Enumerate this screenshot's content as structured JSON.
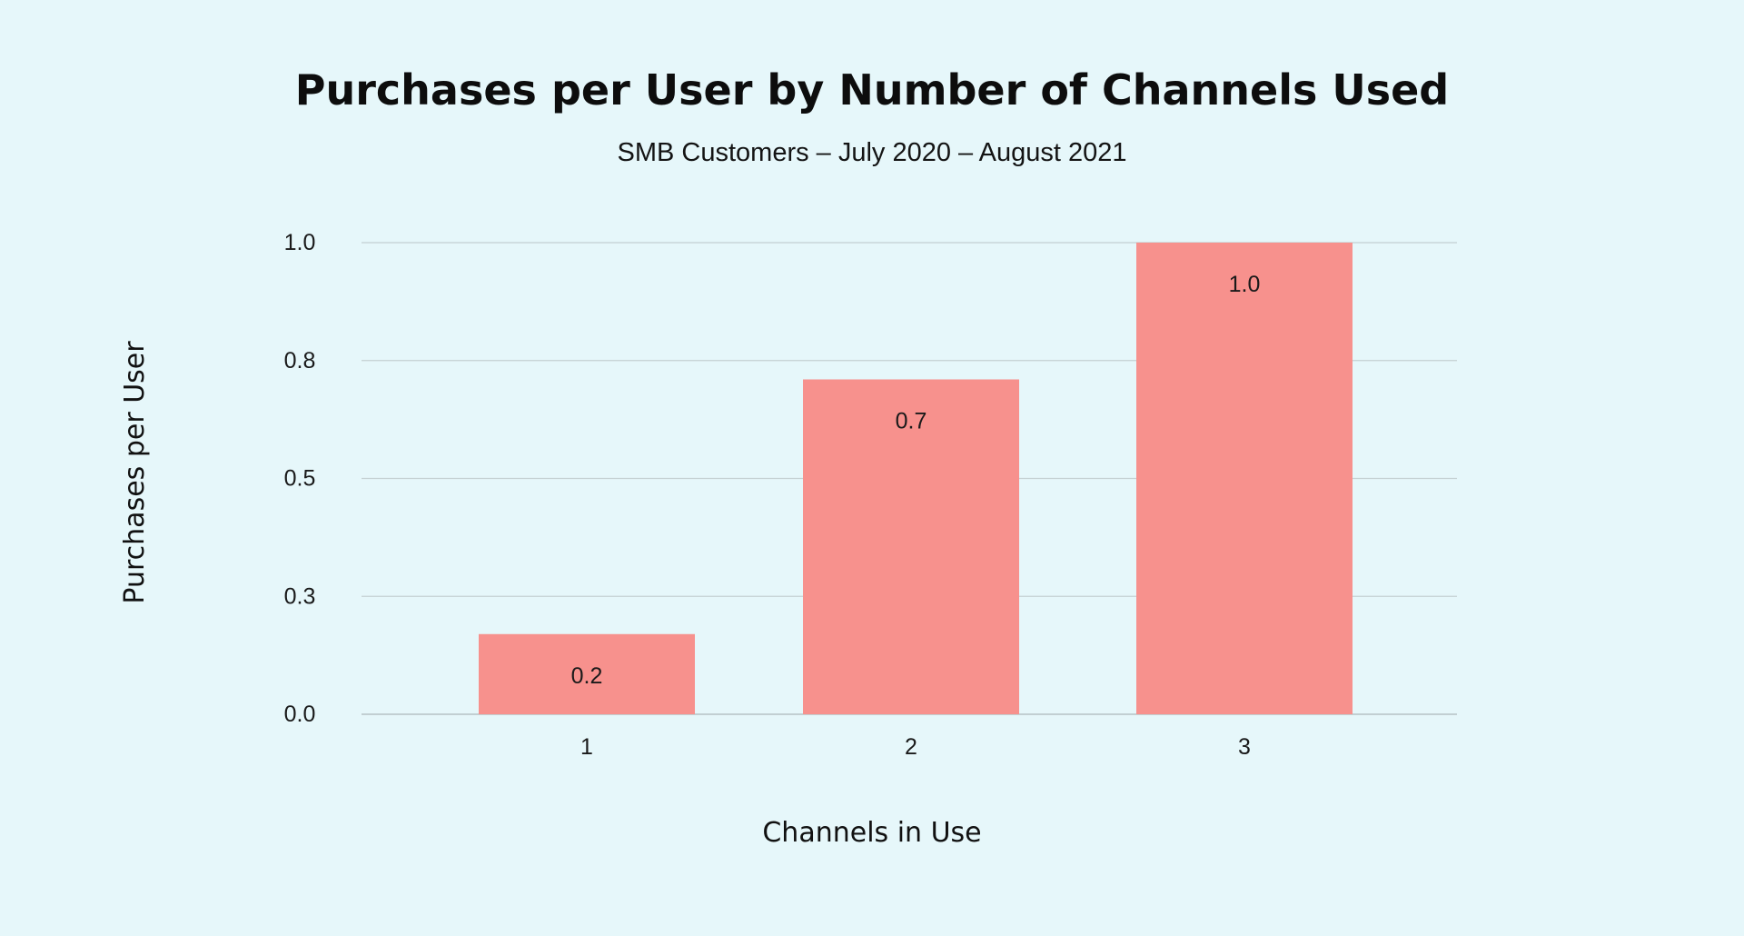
{
  "colors": {
    "background": "#e6f7fa",
    "bar": "#f7918d",
    "grid": "#c4d0d2",
    "text": "#111111"
  },
  "chart_data": {
    "type": "bar",
    "title": "Purchases per User by Number of Channels Used",
    "subtitle": "SMB Customers – July 2020 – August 2021",
    "xlabel": "Channels in Use",
    "ylabel": "Purchases per User",
    "categories": [
      "1",
      "2",
      "3"
    ],
    "values": [
      0.17,
      0.71,
      1.0
    ],
    "data_labels": [
      "0.2",
      "0.7",
      "1.0"
    ],
    "y_ticks": [
      {
        "value": 0.0,
        "label": "0.0"
      },
      {
        "value": 0.25,
        "label": "0.3"
      },
      {
        "value": 0.5,
        "label": "0.5"
      },
      {
        "value": 0.75,
        "label": "0.8"
      },
      {
        "value": 1.0,
        "label": "1.0"
      }
    ],
    "ylim": [
      0,
      1.0
    ],
    "grid": true,
    "legend": "none"
  }
}
